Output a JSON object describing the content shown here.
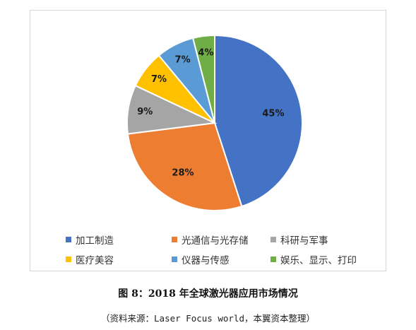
{
  "chart_data": {
    "type": "pie",
    "categories": [
      "加工制造",
      "光通信与光存储",
      "科研与军事",
      "医疗美容",
      "仪器与传感",
      "娱乐、显示、打印"
    ],
    "values": [
      45,
      28,
      9,
      7,
      7,
      4
    ],
    "value_labels": [
      "45%",
      "28%",
      "9%",
      "7%",
      "7%",
      "4%"
    ],
    "colors": [
      "#4472C4",
      "#ED7D31",
      "#A5A5A5",
      "#FFC000",
      "#5B9BD5",
      "#70AD47"
    ],
    "legend_position": "bottom",
    "start_angle": "12 o'clock",
    "direction": "clockwise"
  },
  "caption": "图 8：2018 年全球激光器应用市场情况",
  "source": "（资料来源：Laser Focus world，本翼资本整理）"
}
